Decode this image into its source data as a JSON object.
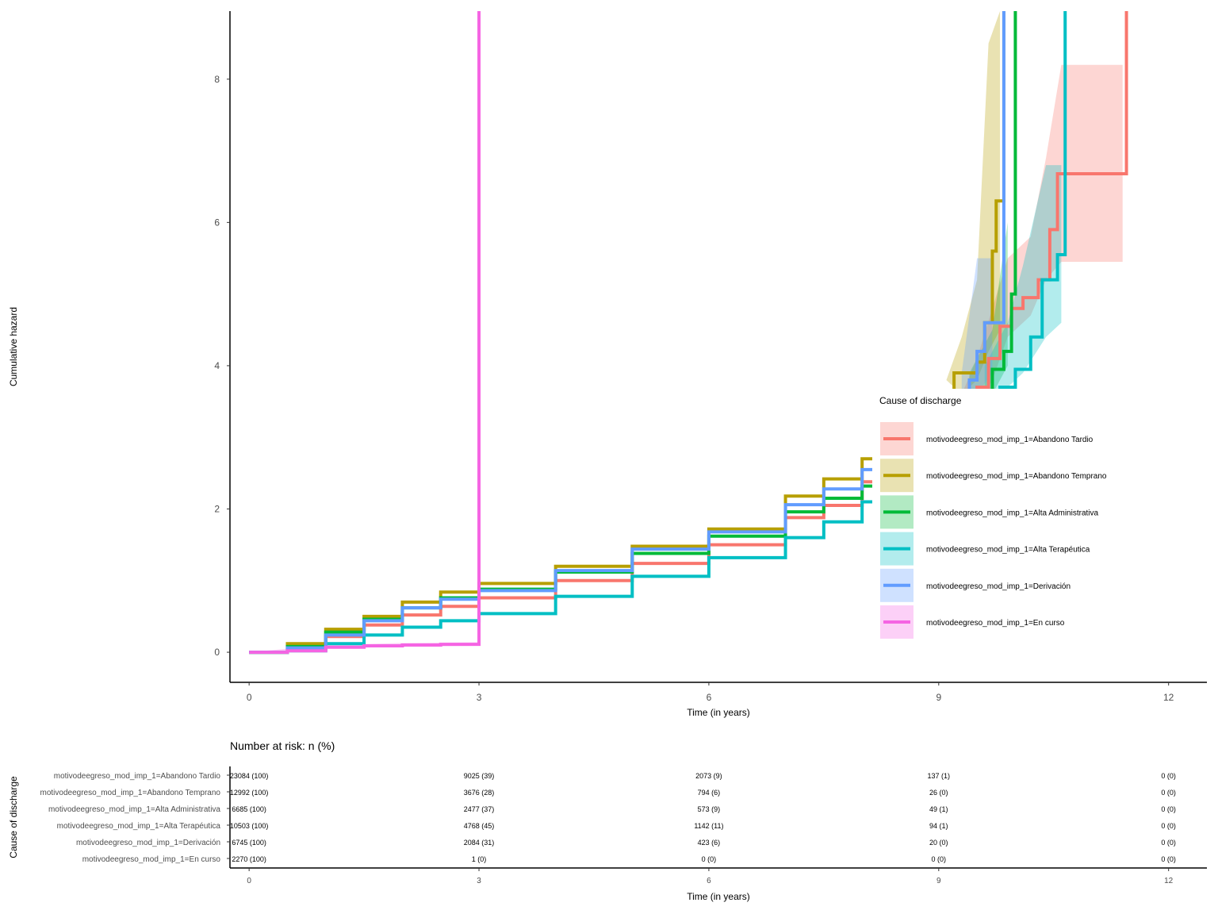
{
  "chart_data": {
    "type": "line",
    "ylabel": "Cumulative hazard",
    "xlabel": "Time (in years)",
    "xlim": [
      -0.25,
      12.5
    ],
    "ylim": [
      -0.42,
      8.95
    ],
    "x_ticks": [
      0,
      3,
      6,
      9,
      12
    ],
    "y_ticks": [
      0,
      2,
      4,
      6,
      8
    ],
    "grid": false,
    "legend": {
      "title": "Cause of discharge",
      "placement": "right"
    },
    "series": [
      {
        "name": "motivodeegreso_mod_imp_1=Abandono Tardio",
        "color": "#F8766D",
        "points": [
          [
            0,
            0
          ],
          [
            0.5,
            0.05
          ],
          [
            1,
            0.22
          ],
          [
            1.5,
            0.38
          ],
          [
            2,
            0.52
          ],
          [
            2.5,
            0.64
          ],
          [
            3,
            0.76
          ],
          [
            4,
            1.0
          ],
          [
            5,
            1.24
          ],
          [
            6,
            1.5
          ],
          [
            7,
            1.88
          ],
          [
            7.5,
            2.05
          ],
          [
            8,
            2.38
          ],
          [
            9,
            3.0
          ],
          [
            9.5,
            3.7
          ],
          [
            9.65,
            4.1
          ],
          [
            9.8,
            4.55
          ],
          [
            9.95,
            4.8
          ],
          [
            10.1,
            4.95
          ],
          [
            10.3,
            5.2
          ],
          [
            10.45,
            5.9
          ],
          [
            10.55,
            6.68
          ],
          [
            11.45,
            6.68
          ],
          [
            11.45,
            8.95
          ]
        ],
        "band": [
          [
            9.3,
            3.6,
            3.6
          ],
          [
            9.5,
            3.4,
            4.1
          ],
          [
            9.7,
            3.8,
            4.8
          ],
          [
            9.9,
            4.4,
            5.5
          ],
          [
            10.2,
            4.7,
            5.8
          ],
          [
            10.4,
            5.2,
            6.9
          ],
          [
            10.6,
            5.45,
            8.2
          ],
          [
            11.4,
            5.45,
            8.2
          ]
        ]
      },
      {
        "name": "motivodeegreso_mod_imp_1=Abandono Temprano",
        "color": "#B79F00",
        "points": [
          [
            0,
            0
          ],
          [
            0.5,
            0.12
          ],
          [
            1,
            0.32
          ],
          [
            1.5,
            0.5
          ],
          [
            2,
            0.7
          ],
          [
            2.5,
            0.84
          ],
          [
            3,
            0.96
          ],
          [
            4,
            1.2
          ],
          [
            5,
            1.48
          ],
          [
            6,
            1.72
          ],
          [
            7,
            2.18
          ],
          [
            7.5,
            2.42
          ],
          [
            8,
            2.7
          ],
          [
            9,
            3.3
          ],
          [
            9.2,
            3.9
          ],
          [
            9.5,
            4.05
          ],
          [
            9.6,
            4.6
          ],
          [
            9.7,
            5.6
          ],
          [
            9.75,
            6.3
          ],
          [
            9.85,
            6.3
          ],
          [
            9.85,
            8.95
          ]
        ],
        "band": [
          [
            9.1,
            3.8,
            3.8
          ],
          [
            9.3,
            3.6,
            4.4
          ],
          [
            9.5,
            3.8,
            5.2
          ],
          [
            9.65,
            4.2,
            8.5
          ],
          [
            9.8,
            4.5,
            8.95
          ]
        ]
      },
      {
        "name": "motivodeegreso_mod_imp_1=Alta Administrativa",
        "color": "#00BA38",
        "points": [
          [
            0,
            0
          ],
          [
            0.5,
            0.08
          ],
          [
            1,
            0.28
          ],
          [
            1.5,
            0.46
          ],
          [
            2,
            0.62
          ],
          [
            2.5,
            0.76
          ],
          [
            3,
            0.88
          ],
          [
            4,
            1.12
          ],
          [
            5,
            1.38
          ],
          [
            6,
            1.62
          ],
          [
            7,
            1.96
          ],
          [
            7.5,
            2.15
          ],
          [
            8,
            2.32
          ],
          [
            9,
            2.9
          ],
          [
            9.5,
            3.6
          ],
          [
            9.7,
            3.95
          ],
          [
            9.85,
            4.2
          ],
          [
            9.95,
            5.0
          ],
          [
            10.0,
            6.05
          ],
          [
            10.0,
            8.95
          ]
        ],
        "band": [
          [
            9.4,
            3.4,
            3.9
          ],
          [
            9.7,
            3.6,
            4.5
          ],
          [
            9.9,
            4.0,
            6.0
          ]
        ]
      },
      {
        "name": "motivodeegreso_mod_imp_1=Alta Terapéutica",
        "color": "#00BFC4",
        "points": [
          [
            0,
            0
          ],
          [
            0.5,
            0.02
          ],
          [
            1,
            0.12
          ],
          [
            1.5,
            0.24
          ],
          [
            2,
            0.35
          ],
          [
            2.5,
            0.44
          ],
          [
            3,
            0.54
          ],
          [
            4,
            0.78
          ],
          [
            5,
            1.06
          ],
          [
            6,
            1.32
          ],
          [
            7,
            1.6
          ],
          [
            7.5,
            1.82
          ],
          [
            8,
            2.1
          ],
          [
            9,
            2.7
          ],
          [
            9.5,
            3.2
          ],
          [
            9.8,
            3.7
          ],
          [
            10.0,
            3.95
          ],
          [
            10.2,
            4.4
          ],
          [
            10.35,
            5.2
          ],
          [
            10.55,
            5.55
          ],
          [
            10.65,
            5.55
          ],
          [
            10.65,
            8.95
          ]
        ],
        "band": [
          [
            9.6,
            3.4,
            4.0
          ],
          [
            9.9,
            3.7,
            4.6
          ],
          [
            10.1,
            3.9,
            5.4
          ],
          [
            10.4,
            4.4,
            6.8
          ],
          [
            10.6,
            4.6,
            6.8
          ]
        ]
      },
      {
        "name": "motivodeegreso_mod_imp_1=Derivación",
        "color": "#619CFF",
        "points": [
          [
            0,
            0
          ],
          [
            0.5,
            0.06
          ],
          [
            1,
            0.24
          ],
          [
            1.5,
            0.44
          ],
          [
            2,
            0.62
          ],
          [
            2.5,
            0.74
          ],
          [
            3,
            0.86
          ],
          [
            4,
            1.14
          ],
          [
            5,
            1.44
          ],
          [
            6,
            1.68
          ],
          [
            7,
            2.06
          ],
          [
            7.5,
            2.28
          ],
          [
            8,
            2.55
          ],
          [
            9,
            3.1
          ],
          [
            9.4,
            3.8
          ],
          [
            9.5,
            4.2
          ],
          [
            9.6,
            4.6
          ],
          [
            9.85,
            4.6
          ],
          [
            9.85,
            8.95
          ]
        ],
        "band": [
          [
            9.3,
            3.5,
            3.9
          ],
          [
            9.5,
            3.6,
            5.5
          ],
          [
            9.7,
            3.9,
            5.5
          ]
        ]
      },
      {
        "name": "motivodeegreso_mod_imp_1=En curso",
        "color": "#F564E3",
        "points": [
          [
            0,
            0
          ],
          [
            0.5,
            0.02
          ],
          [
            1,
            0.07
          ],
          [
            1.5,
            0.09
          ],
          [
            2,
            0.1
          ],
          [
            2.5,
            0.11
          ],
          [
            3,
            0.11
          ],
          [
            3,
            8.95
          ]
        ],
        "band": [
          [
            0,
            0,
            0
          ],
          [
            1,
            0.05,
            0.1
          ],
          [
            2,
            0.08,
            0.13
          ],
          [
            3,
            0.09,
            0.14
          ]
        ]
      }
    ],
    "risk_table": {
      "title": "Number at risk: n (%)",
      "ylabel": "Cause of discharge",
      "xlabel": "Time (in years)",
      "times": [
        0,
        3,
        6,
        9,
        12
      ],
      "rows": [
        {
          "strata": "motivodeegreso_mod_imp_1=Abandono Tardio",
          "values": [
            "23084 (100)",
            "9025 (39)",
            "2073 (9)",
            "137 (1)",
            "0 (0)"
          ]
        },
        {
          "strata": "motivodeegreso_mod_imp_1=Abandono Temprano",
          "values": [
            "12992 (100)",
            "3676 (28)",
            "794 (6)",
            "26 (0)",
            "0 (0)"
          ]
        },
        {
          "strata": "motivodeegreso_mod_imp_1=Alta Administrativa",
          "values": [
            "6685 (100)",
            "2477 (37)",
            "573 (9)",
            "49 (1)",
            "0 (0)"
          ]
        },
        {
          "strata": "motivodeegreso_mod_imp_1=Alta Terapéutica",
          "values": [
            "10503 (100)",
            "4768 (45)",
            "1142 (11)",
            "94 (1)",
            "0 (0)"
          ]
        },
        {
          "strata": "motivodeegreso_mod_imp_1=Derivación",
          "values": [
            "6745 (100)",
            "2084 (31)",
            "423 (6)",
            "20 (0)",
            "0 (0)"
          ]
        },
        {
          "strata": "motivodeegreso_mod_imp_1=En curso",
          "values": [
            "2270 (100)",
            "1 (0)",
            "0 (0)",
            "0 (0)",
            "0 (0)"
          ]
        }
      ]
    }
  }
}
